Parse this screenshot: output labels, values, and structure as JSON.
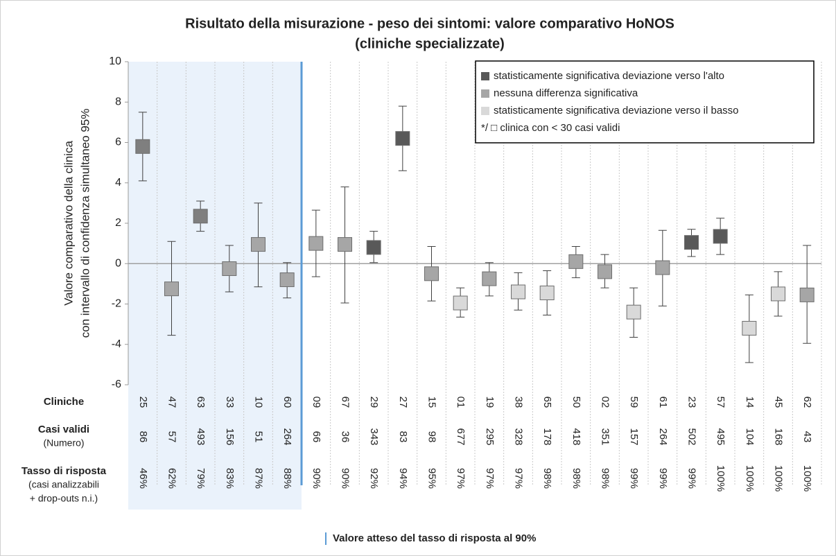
{
  "chart_data": {
    "type": "errorbar",
    "title": [
      "Risultato della misurazione - peso dei sintomi: valore comparativo HoNOS",
      "(cliniche specializzate)"
    ],
    "y_label": [
      "Valore comparativo della clinica",
      "con intervallo di confidenza simultaneo 95%"
    ],
    "categories": [
      "25",
      "47",
      "63",
      "33",
      "10",
      "60",
      "09",
      "67",
      "29",
      "27",
      "15",
      "01",
      "19",
      "38",
      "65",
      "50",
      "02",
      "59",
      "61",
      "23",
      "57",
      "14",
      "45",
      "62"
    ],
    "values": [
      5.8,
      -1.25,
      2.35,
      -0.25,
      0.95,
      -0.8,
      1.0,
      0.95,
      0.8,
      6.2,
      -0.5,
      -1.95,
      -0.75,
      -1.4,
      -1.45,
      0.1,
      -0.4,
      -2.4,
      -0.2,
      1.05,
      1.35,
      -3.2,
      -1.5,
      -1.55
    ],
    "ci_low": [
      4.1,
      -3.55,
      1.6,
      -1.4,
      -1.15,
      -1.7,
      -0.65,
      -1.95,
      0.05,
      4.6,
      -1.85,
      -2.65,
      -1.6,
      -2.3,
      -2.55,
      -0.7,
      -1.2,
      -3.65,
      -2.1,
      0.35,
      0.45,
      -4.9,
      -2.6,
      -3.95
    ],
    "ci_high": [
      7.5,
      1.1,
      3.1,
      0.9,
      3.0,
      0.05,
      2.65,
      3.8,
      1.6,
      7.8,
      0.85,
      -1.2,
      0.05,
      -0.45,
      -0.35,
      0.85,
      0.45,
      -1.2,
      1.65,
      1.7,
      2.25,
      -1.55,
      -0.4,
      0.9
    ],
    "colors": [
      "#7f7f7f",
      "#a6a6a6",
      "#7f7f7f",
      "#a6a6a6",
      "#a6a6a6",
      "#a6a6a6",
      "#a6a6a6",
      "#a6a6a6",
      "#595959",
      "#595959",
      "#a6a6a6",
      "#d9d9d9",
      "#a6a6a6",
      "#d9d9d9",
      "#d9d9d9",
      "#a6a6a6",
      "#a6a6a6",
      "#d9d9d9",
      "#a6a6a6",
      "#595959",
      "#595959",
      "#d9d9d9",
      "#d9d9d9",
      "#a6a6a6"
    ],
    "ylim": [
      -6,
      10
    ],
    "yticks": [
      -6,
      -4,
      -2,
      0,
      2,
      4,
      6,
      8,
      10
    ],
    "legend": [
      {
        "label": "statisticamente significativa deviazione verso l'alto",
        "color": "#595959"
      },
      {
        "label": "nessuna differenza significativa",
        "color": "#a6a6a6"
      },
      {
        "label": "statisticamente significativa deviazione verso il basso",
        "color": "#d9d9d9"
      },
      {
        "label": "*/ □ clinica con < 30 casi validi"
      }
    ],
    "row_labels": {
      "clinics": "Cliniche",
      "cases": [
        "Casi validi",
        "(Numero)"
      ],
      "rate": [
        "Tasso di risposta",
        "(casi analizzabili",
        "+ drop-outs n.i.)"
      ]
    },
    "cases": [
      86,
      57,
      493,
      156,
      51,
      264,
      66,
      36,
      343,
      83,
      98,
      677,
      295,
      328,
      178,
      418,
      351,
      157,
      264,
      502,
      495,
      104,
      168,
      43
    ],
    "response_rates": [
      46,
      62,
      79,
      83,
      87,
      88,
      90,
      90,
      92,
      94,
      95,
      97,
      97,
      97,
      98,
      98,
      98,
      99,
      99,
      99,
      100,
      100,
      100,
      100
    ],
    "response_rate_labels": [
      "46%",
      "62%",
      "79%",
      "83%",
      "87%",
      "88%",
      "90%",
      "90%",
      "92%",
      "94%",
      "95%",
      "97%",
      "97%",
      "97%",
      "98%",
      "98%",
      "98%",
      "99%",
      "99%",
      "99%",
      "100%",
      "100%",
      "100%",
      "100%"
    ],
    "expected_rate": 90,
    "footer": "Valore atteso del tasso di risposta al 90%"
  }
}
